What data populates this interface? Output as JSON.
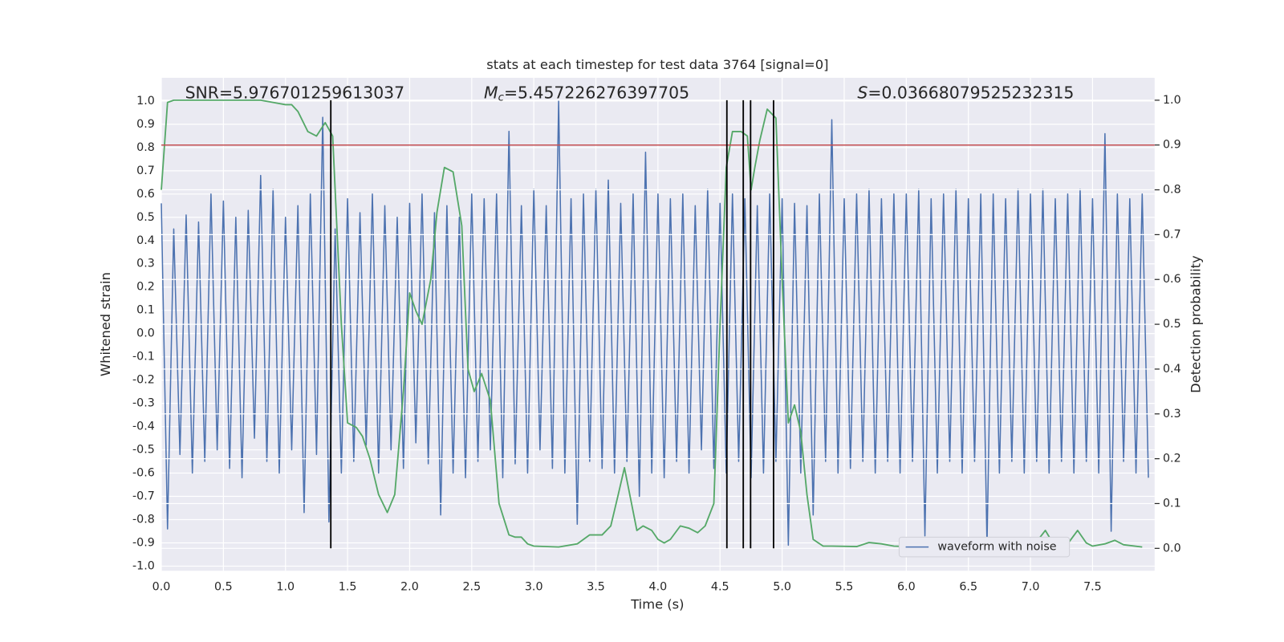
{
  "chart_data": {
    "type": "line",
    "title": "stats at each timestep for test data 3764 [signal=0]",
    "xlabel": "Time (s)",
    "ylabel": "Whitened strain",
    "y2label": "Detection probability",
    "xlim": [
      0,
      8
    ],
    "ylim": [
      -1.02,
      1.1
    ],
    "y2lim": [
      -0.05,
      1.05
    ],
    "xticks": [
      {
        "value": 0,
        "label": "0.0"
      },
      0.5,
      {
        "value": 1,
        "label": "1.0"
      },
      1.5,
      {
        "value": 2,
        "label": "2.0"
      },
      2.5,
      {
        "value": 3,
        "label": "3.0"
      },
      3.5,
      {
        "value": 4,
        "label": "4.0"
      },
      4.5,
      {
        "value": 5,
        "label": "5.0"
      },
      5.5,
      {
        "value": 6,
        "label": "6.0"
      },
      6.5,
      {
        "value": 7,
        "label": "7.0"
      },
      7.5
    ],
    "yticks": [
      {
        "value": -1,
        "label": "-1.0"
      },
      -0.9,
      -0.8,
      -0.7,
      -0.6,
      -0.5,
      -0.4,
      -0.3,
      -0.2,
      -0.1,
      {
        "value": 0,
        "label": "0.0"
      },
      0.1,
      0.2,
      0.3,
      0.4,
      0.5,
      0.6,
      0.7,
      0.8,
      0.9,
      {
        "value": 1,
        "label": "1.0"
      }
    ],
    "y2ticks": [
      {
        "value": 0,
        "label": "0.0"
      },
      0.1,
      0.2,
      0.3,
      0.4,
      0.5,
      0.6,
      0.7,
      0.8,
      0.9,
      {
        "value": 1,
        "label": "1.0"
      }
    ],
    "grid": true,
    "legend": "lower right",
    "annotations": [
      {
        "text": "SNR=5.976701259613037"
      },
      {
        "symbol": "M",
        "subscript": "c",
        "text": "=5.457226276397705"
      },
      {
        "symbol": "S",
        "text": "=0.03668079525232315"
      }
    ],
    "series": [
      {
        "name": "waveform with noise",
        "color": "#4c72b0",
        "x": [
          0,
          0.05,
          0.1,
          0.15,
          0.2,
          0.25,
          0.3,
          0.35,
          0.4,
          0.45,
          0.5,
          0.55,
          0.6,
          0.65,
          0.7,
          0.75,
          0.8,
          0.85,
          0.9,
          0.95,
          1,
          1.05,
          1.1,
          1.15,
          1.2,
          1.25,
          1.3,
          1.35,
          1.4,
          1.45,
          1.5,
          1.55,
          1.6,
          1.65,
          1.7,
          1.75,
          1.8,
          1.85,
          1.9,
          1.95,
          2,
          2.05,
          2.1,
          2.15,
          2.2,
          2.25,
          2.3,
          2.35,
          2.4,
          2.45,
          2.5,
          2.55,
          2.6,
          2.65,
          2.7,
          2.75,
          2.8,
          2.85,
          2.9,
          2.95,
          3,
          3.05,
          3.1,
          3.15,
          3.2,
          3.25,
          3.3,
          3.35,
          3.4,
          3.45,
          3.5,
          3.55,
          3.6,
          3.65,
          3.7,
          3.75,
          3.8,
          3.85,
          3.9,
          3.95,
          4,
          4.05,
          4.1,
          4.15,
          4.2,
          4.25,
          4.3,
          4.35,
          4.4,
          4.45,
          4.5,
          4.55,
          4.6,
          4.65,
          4.7,
          4.75,
          4.8,
          4.85,
          4.9,
          4.95,
          5,
          5.05,
          5.1,
          5.15,
          5.2,
          5.25,
          5.3,
          5.35,
          5.4,
          5.45,
          5.5,
          5.55,
          5.6,
          5.65,
          5.7,
          5.75,
          5.8,
          5.85,
          5.9,
          5.95,
          6,
          6.05,
          6.1,
          6.15,
          6.2,
          6.25,
          6.3,
          6.35,
          6.4,
          6.45,
          6.5,
          6.55,
          6.6,
          6.65,
          6.7,
          6.75,
          6.8,
          6.85,
          6.9,
          6.95,
          7,
          7.05,
          7.1,
          7.15,
          7.2,
          7.25,
          7.3,
          7.35,
          7.4,
          7.45,
          7.5,
          7.55,
          7.6,
          7.65,
          7.7,
          7.75,
          7.8,
          7.85,
          7.9,
          7.95
        ],
        "values": [
          0.56,
          -0.84,
          0.45,
          -0.52,
          0.51,
          -0.6,
          0.48,
          -0.55,
          0.6,
          -0.5,
          0.57,
          -0.58,
          0.5,
          -0.62,
          0.53,
          -0.45,
          0.68,
          -0.55,
          0.62,
          -0.6,
          0.5,
          -0.5,
          0.55,
          -0.77,
          0.6,
          -0.52,
          0.93,
          -0.81,
          0.45,
          -0.6,
          0.58,
          -0.55,
          0.52,
          -0.48,
          0.6,
          -0.6,
          0.55,
          -0.5,
          0.5,
          -0.58,
          0.56,
          -0.47,
          0.6,
          -0.56,
          0.52,
          -0.78,
          0.55,
          -0.6,
          0.5,
          -0.62,
          0.6,
          -0.55,
          0.58,
          -0.5,
          0.6,
          -0.62,
          0.87,
          -0.56,
          0.55,
          -0.6,
          0.62,
          -0.5,
          0.55,
          -0.58,
          1.0,
          -0.6,
          0.58,
          -0.82,
          0.6,
          -0.55,
          0.62,
          -0.58,
          0.66,
          -0.6,
          0.56,
          -0.55,
          0.6,
          -0.7,
          0.78,
          -0.6,
          0.6,
          -0.62,
          0.58,
          -0.55,
          0.6,
          -0.6,
          0.55,
          -0.5,
          0.62,
          -0.58,
          0.56,
          -0.6,
          0.6,
          -0.55,
          0.58,
          -0.62,
          0.55,
          -0.6,
          0.6,
          -0.55,
          0.58,
          -0.91,
          0.56,
          -0.6,
          0.55,
          -0.78,
          0.6,
          -0.55,
          0.92,
          -0.6,
          0.58,
          -0.58,
          0.6,
          -0.55,
          0.62,
          -0.6,
          0.58,
          -0.55,
          0.6,
          -0.6,
          0.6,
          -0.55,
          0.62,
          -0.87,
          0.58,
          -0.6,
          0.6,
          -0.55,
          0.62,
          -0.6,
          0.58,
          -0.55,
          0.6,
          -0.91,
          0.6,
          -0.6,
          0.58,
          -0.55,
          0.62,
          -0.6,
          0.6,
          -0.55,
          0.62,
          -0.6,
          0.58,
          -0.55,
          0.6,
          -0.6,
          0.62,
          -0.55,
          0.58,
          -0.6,
          0.86,
          -0.85,
          0.6,
          -0.55,
          0.58,
          -0.6,
          0.6,
          -0.62
        ]
      },
      {
        "color": "#55a868",
        "axis": "y2",
        "x": [
          0,
          0.05,
          0.1,
          0.8,
          0.9,
          1,
          1.05,
          1.1,
          1.18,
          1.25,
          1.32,
          1.38,
          1.45,
          1.5,
          1.57,
          1.62,
          1.68,
          1.75,
          1.82,
          1.88,
          1.95,
          2,
          2.05,
          2.1,
          2.17,
          2.22,
          2.28,
          2.35,
          2.42,
          2.47,
          2.52,
          2.58,
          2.65,
          2.72,
          2.8,
          2.85,
          2.9,
          2.95,
          3,
          3.2,
          3.35,
          3.45,
          3.55,
          3.62,
          3.68,
          3.73,
          3.78,
          3.83,
          3.88,
          3.95,
          4,
          4.05,
          4.1,
          4.18,
          4.25,
          4.32,
          4.38,
          4.45,
          4.5,
          4.55,
          4.6,
          4.67,
          4.72,
          4.75,
          4.78,
          4.82,
          4.88,
          4.95,
          5,
          5.05,
          5.1,
          5.15,
          5.2,
          5.25,
          5.33,
          5.4,
          5.6,
          5.7,
          5.8,
          5.9,
          6,
          6.2,
          6.45,
          6.55,
          6.7,
          6.8,
          6.92,
          7,
          7.05,
          7.12,
          7.18,
          7.25,
          7.3,
          7.38,
          7.45,
          7.5,
          7.6,
          7.68,
          7.75,
          7.9
        ],
        "values": [
          0.8,
          0.995,
          1.0,
          1.0,
          0.995,
          0.99,
          0.99,
          0.975,
          0.93,
          0.92,
          0.95,
          0.92,
          0.5,
          0.28,
          0.27,
          0.25,
          0.2,
          0.12,
          0.08,
          0.12,
          0.35,
          0.57,
          0.53,
          0.5,
          0.6,
          0.75,
          0.85,
          0.84,
          0.72,
          0.4,
          0.35,
          0.39,
          0.33,
          0.1,
          0.03,
          0.025,
          0.025,
          0.01,
          0.005,
          0.003,
          0.01,
          0.03,
          0.03,
          0.05,
          0.12,
          0.18,
          0.11,
          0.04,
          0.05,
          0.04,
          0.02,
          0.012,
          0.02,
          0.05,
          0.045,
          0.035,
          0.05,
          0.1,
          0.5,
          0.85,
          0.93,
          0.93,
          0.92,
          0.8,
          0.85,
          0.91,
          0.98,
          0.96,
          0.6,
          0.28,
          0.32,
          0.26,
          0.12,
          0.02,
          0.005,
          0.005,
          0.004,
          0.013,
          0.01,
          0.005,
          0.004,
          0.002,
          0.005,
          0.008,
          0.004,
          0.008,
          0.004,
          0.006,
          0.015,
          0.04,
          0.012,
          0.008,
          0.01,
          0.04,
          0.012,
          0.005,
          0.01,
          0.018,
          0.008,
          0.003
        ]
      }
    ],
    "hlines": [
      {
        "value": 0.9,
        "axis": "y2",
        "color": "#c44e52"
      }
    ],
    "vlines": {
      "x": [
        1.365,
        4.555,
        4.687,
        4.746,
        4.931
      ],
      "ymin": 0,
      "ymax": 1,
      "axis": "y2",
      "color": "#000000"
    }
  }
}
